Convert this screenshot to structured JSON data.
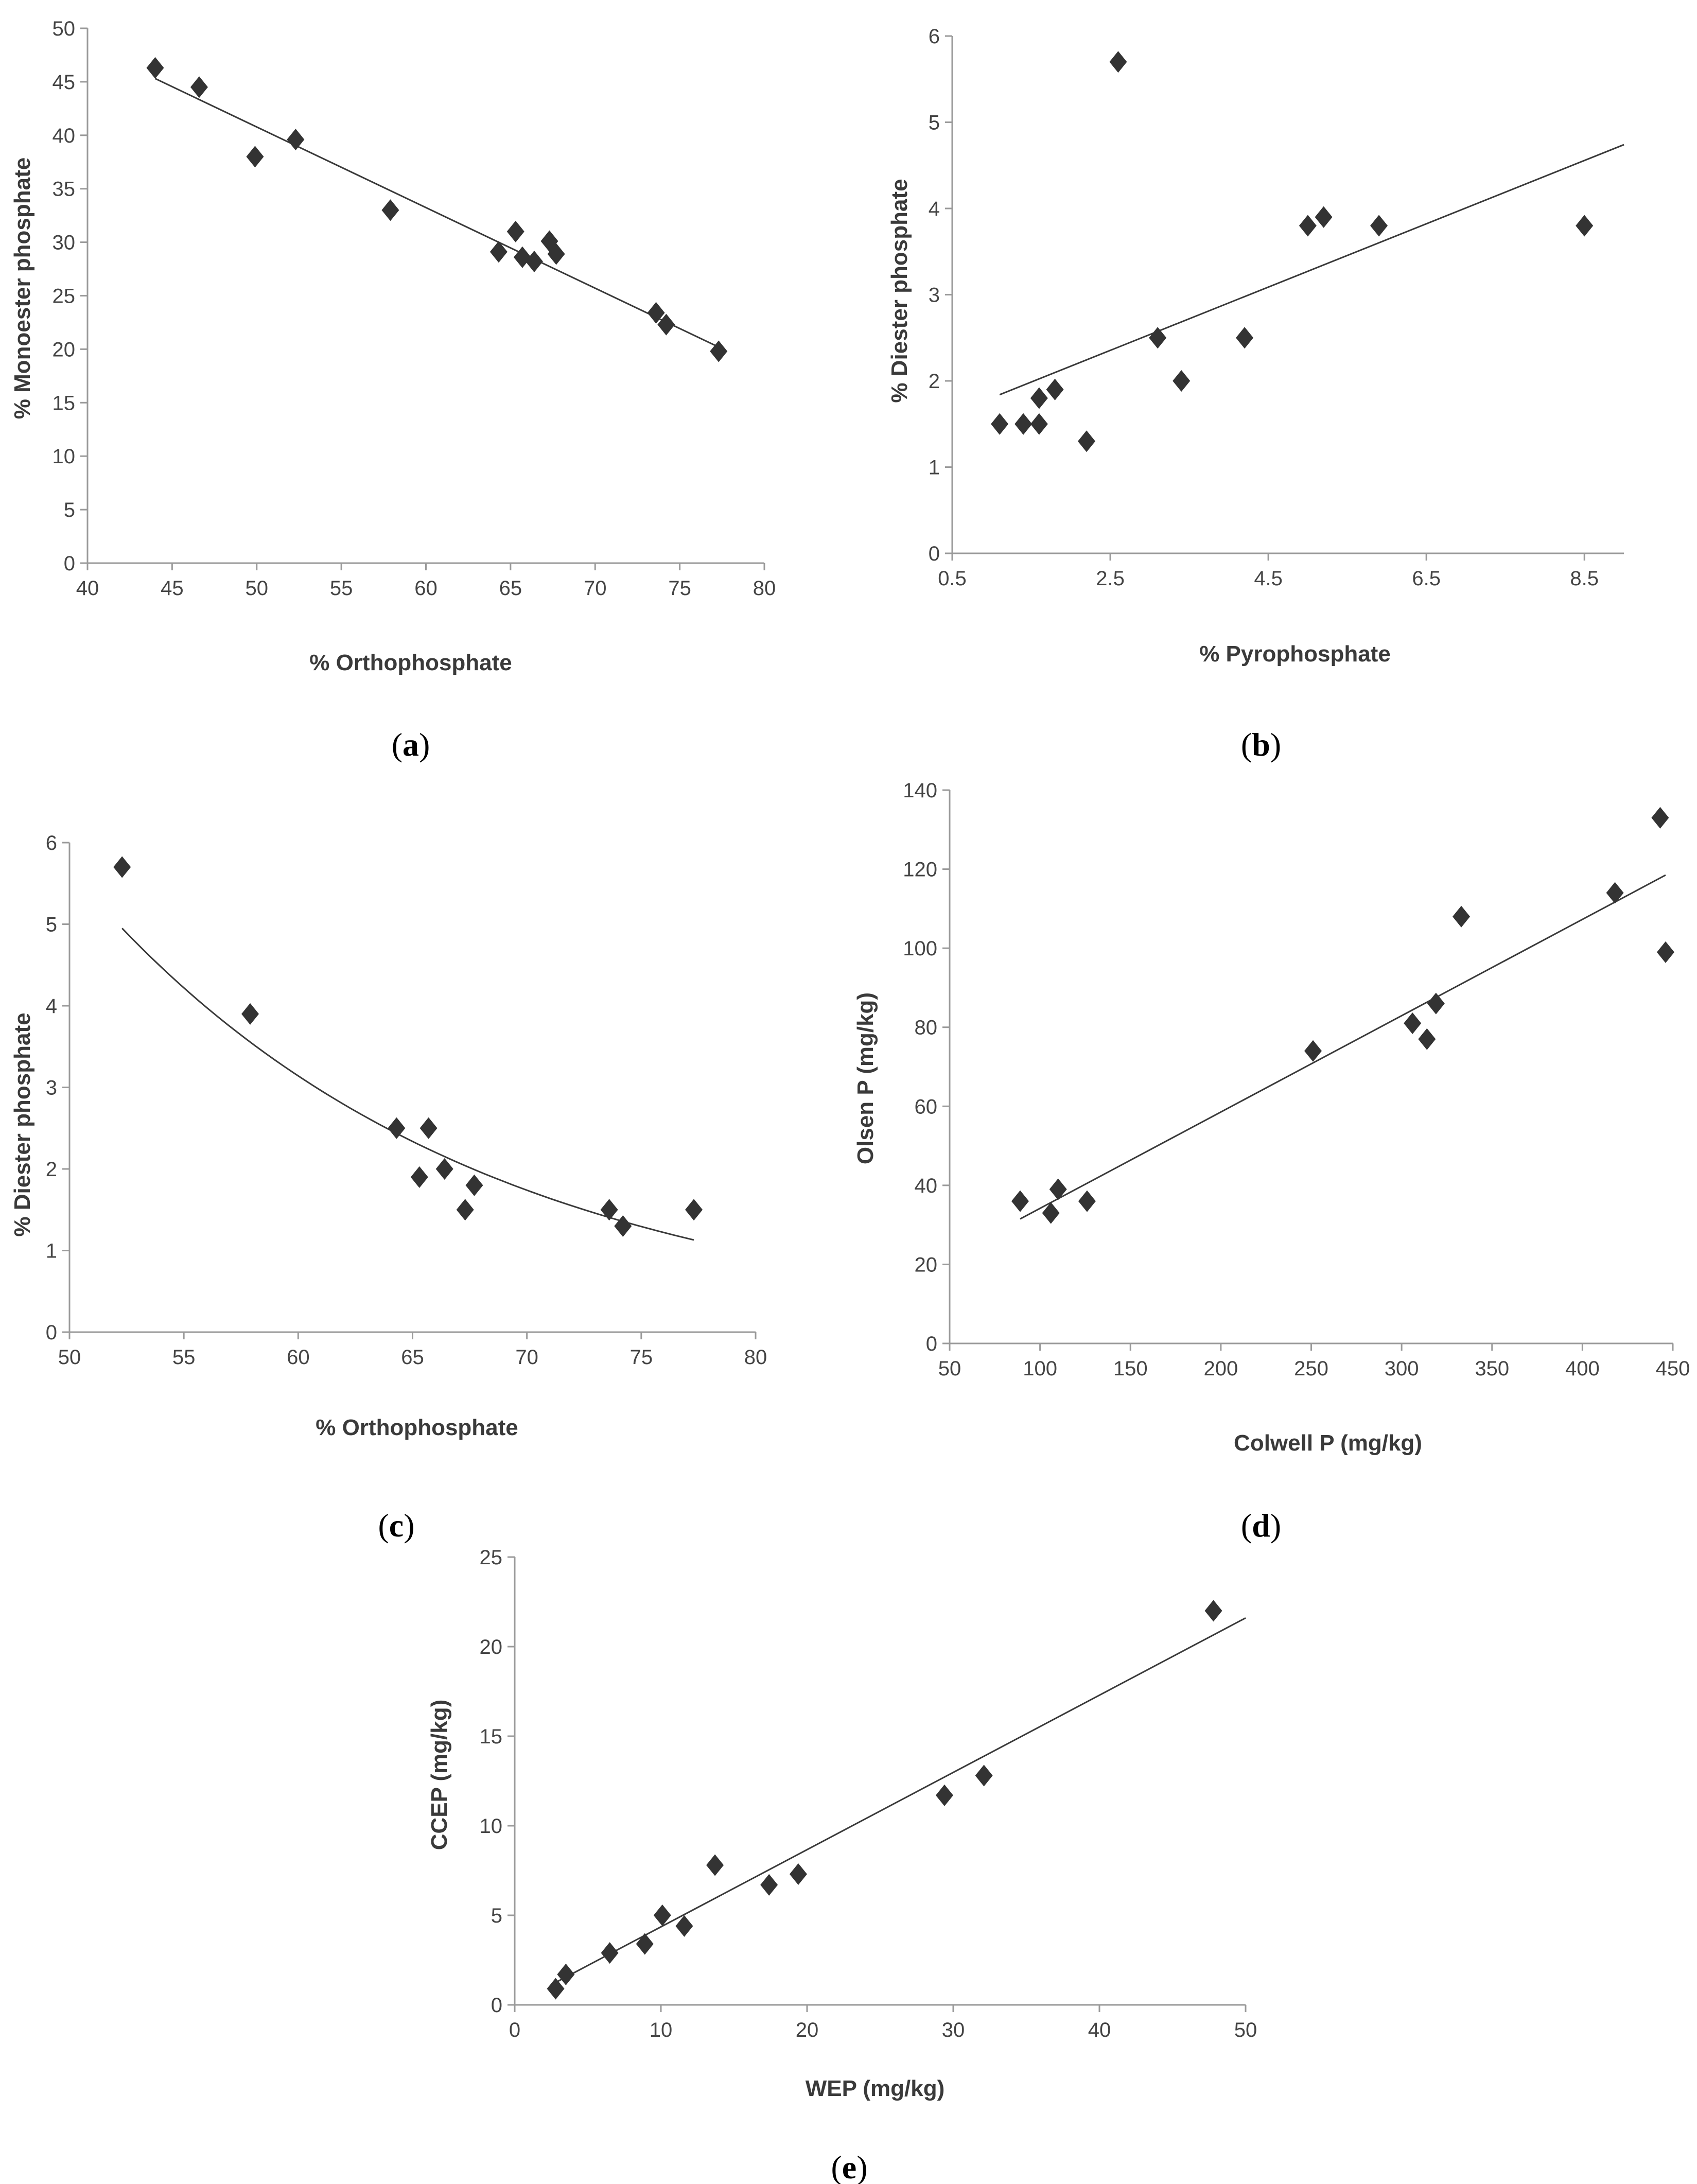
{
  "figure": {
    "panels": [
      {
        "id": "a",
        "label": "(a)",
        "letter": "a"
      },
      {
        "id": "b",
        "label": "(b)",
        "letter": "b"
      },
      {
        "id": "c",
        "label": "(c)",
        "letter": "c"
      },
      {
        "id": "d",
        "label": "(d)",
        "letter": "d"
      },
      {
        "id": "e",
        "label": "(e)",
        "letter": "e"
      }
    ]
  },
  "colors": {
    "marker": "#333333",
    "line": "#3a3a3a",
    "axis": "#9a9a9a",
    "text": "#444444"
  },
  "chart_data": [
    {
      "id": "a",
      "type": "scatter",
      "xlabel": "% Orthophosphate",
      "ylabel": "% Monoester phosphate",
      "xlim": [
        40,
        80
      ],
      "ylim": [
        0,
        50
      ],
      "xticks": [
        40,
        45,
        50,
        55,
        60,
        65,
        70,
        75,
        80
      ],
      "yticks": [
        0,
        5,
        10,
        15,
        20,
        25,
        30,
        35,
        40,
        45,
        50
      ],
      "xtick_labels": [
        "40",
        "45",
        "50",
        "55",
        "60",
        "65",
        "70",
        "75",
        "80"
      ],
      "ytick_labels": [
        "0",
        "5",
        "10",
        "15",
        "20",
        "25",
        "30",
        "35",
        "40",
        "45",
        "50"
      ],
      "points": [
        [
          44,
          46.3
        ],
        [
          46.6,
          44.5
        ],
        [
          49.9,
          38
        ],
        [
          52.3,
          39.6
        ],
        [
          57.9,
          33
        ],
        [
          64.3,
          29.1
        ],
        [
          65.3,
          31
        ],
        [
          65.7,
          28.6
        ],
        [
          66.4,
          28.2
        ],
        [
          67.3,
          30.1
        ],
        [
          67.7,
          28.9
        ],
        [
          73.6,
          23.4
        ],
        [
          74.2,
          22.3
        ],
        [
          77.3,
          19.8
        ]
      ],
      "trendline": {
        "kind": "linear",
        "x": [
          44,
          77.3
        ],
        "y": [
          45.3,
          20.2
        ]
      }
    },
    {
      "id": "b",
      "type": "scatter",
      "xlabel": "% Pyrophosphate",
      "ylabel": "% Diester phosphate",
      "xlim": [
        0.5,
        9
      ],
      "ylim": [
        0,
        6
      ],
      "xticks": [
        0.5,
        2.5,
        4.5,
        6.5,
        8.5
      ],
      "yticks": [
        0,
        1,
        2,
        3,
        4,
        5,
        6
      ],
      "xtick_labels": [
        "0.5",
        "2.5",
        "4.5",
        "6.5",
        "8.5"
      ],
      "ytick_labels": [
        "0",
        "1",
        "2",
        "3",
        "4",
        "5",
        "6"
      ],
      "points": [
        [
          1.1,
          1.5
        ],
        [
          1.4,
          1.5
        ],
        [
          1.6,
          1.5
        ],
        [
          1.6,
          1.8
        ],
        [
          1.8,
          1.9
        ],
        [
          2.2,
          1.3
        ],
        [
          2.6,
          5.7
        ],
        [
          3.1,
          2.5
        ],
        [
          3.4,
          2.0
        ],
        [
          4.2,
          2.5
        ],
        [
          5.0,
          3.8
        ],
        [
          5.2,
          3.9
        ],
        [
          5.9,
          3.8
        ],
        [
          8.5,
          3.8
        ]
      ],
      "trendline": {
        "kind": "linear",
        "x": [
          1.1,
          9.0
        ],
        "y": [
          1.84,
          4.74
        ]
      }
    },
    {
      "id": "c",
      "type": "scatter",
      "xlabel": "% Orthophosphate",
      "ylabel": "% Diester phosphate",
      "xlim": [
        50,
        80
      ],
      "ylim": [
        0,
        6
      ],
      "xticks": [
        50,
        55,
        60,
        65,
        70,
        75,
        80
      ],
      "yticks": [
        0,
        1,
        2,
        3,
        4,
        5,
        6
      ],
      "xtick_labels": [
        "50",
        "55",
        "60",
        "65",
        "70",
        "75",
        "80"
      ],
      "ytick_labels": [
        "0",
        "1",
        "2",
        "3",
        "4",
        "5",
        "6"
      ],
      "points": [
        [
          52.3,
          5.7
        ],
        [
          57.9,
          3.9
        ],
        [
          64.3,
          2.5
        ],
        [
          65.3,
          1.9
        ],
        [
          65.7,
          2.5
        ],
        [
          66.4,
          2.0
        ],
        [
          67.3,
          1.5
        ],
        [
          67.7,
          1.8
        ],
        [
          73.6,
          1.5
        ],
        [
          74.2,
          1.3
        ],
        [
          77.3,
          1.5
        ]
      ],
      "trendline": {
        "kind": "exponential",
        "x": [
          52.3,
          77.3
        ],
        "y": [
          4.95,
          1.13
        ]
      }
    },
    {
      "id": "d",
      "type": "scatter",
      "xlabel": "Colwell P (mg/kg)",
      "ylabel": "Olsen P  (mg/kg)",
      "xlim": [
        50,
        450
      ],
      "ylim": [
        0,
        140
      ],
      "xticks": [
        50,
        100,
        150,
        200,
        250,
        300,
        350,
        400,
        450
      ],
      "yticks": [
        0,
        20,
        40,
        60,
        80,
        100,
        120,
        140
      ],
      "xtick_labels": [
        "50",
        "100",
        "150",
        "200",
        "250",
        "300",
        "350",
        "400",
        "450"
      ],
      "ytick_labels": [
        "0",
        "20",
        "40",
        "60",
        "80",
        "100",
        "120",
        "140"
      ],
      "points": [
        [
          89,
          36
        ],
        [
          106,
          33
        ],
        [
          110,
          39
        ],
        [
          126,
          36
        ],
        [
          251,
          74
        ],
        [
          306,
          81
        ],
        [
          314,
          77
        ],
        [
          319,
          86
        ],
        [
          333,
          108
        ],
        [
          418,
          114
        ],
        [
          443,
          133
        ],
        [
          446,
          99
        ]
      ],
      "trendline": {
        "kind": "linear",
        "x": [
          89,
          446
        ],
        "y": [
          31.5,
          118.5
        ]
      }
    },
    {
      "id": "e",
      "type": "scatter",
      "xlabel": "WEP (mg/kg)",
      "ylabel": "CCEP (mg/kg)",
      "xlim": [
        0,
        50
      ],
      "ylim": [
        0,
        25
      ],
      "xticks": [
        0,
        10,
        20,
        30,
        40,
        50
      ],
      "yticks": [
        0,
        5,
        10,
        15,
        20,
        25
      ],
      "xtick_labels": [
        "0",
        "10",
        "20",
        "30",
        "40",
        "50"
      ],
      "ytick_labels": [
        "0",
        "5",
        "10",
        "15",
        "20",
        "25"
      ],
      "points": [
        [
          2.8,
          0.9
        ],
        [
          3.5,
          1.7
        ],
        [
          6.5,
          2.9
        ],
        [
          8.9,
          3.4
        ],
        [
          10.1,
          5.0
        ],
        [
          11.6,
          4.4
        ],
        [
          13.7,
          7.8
        ],
        [
          17.4,
          6.7
        ],
        [
          19.4,
          7.3
        ],
        [
          29.4,
          11.7
        ],
        [
          32.1,
          12.8
        ],
        [
          47.8,
          22.0
        ]
      ],
      "trendline": {
        "kind": "linear",
        "x": [
          2.8,
          50
        ],
        "y": [
          1.25,
          21.6
        ]
      }
    }
  ]
}
